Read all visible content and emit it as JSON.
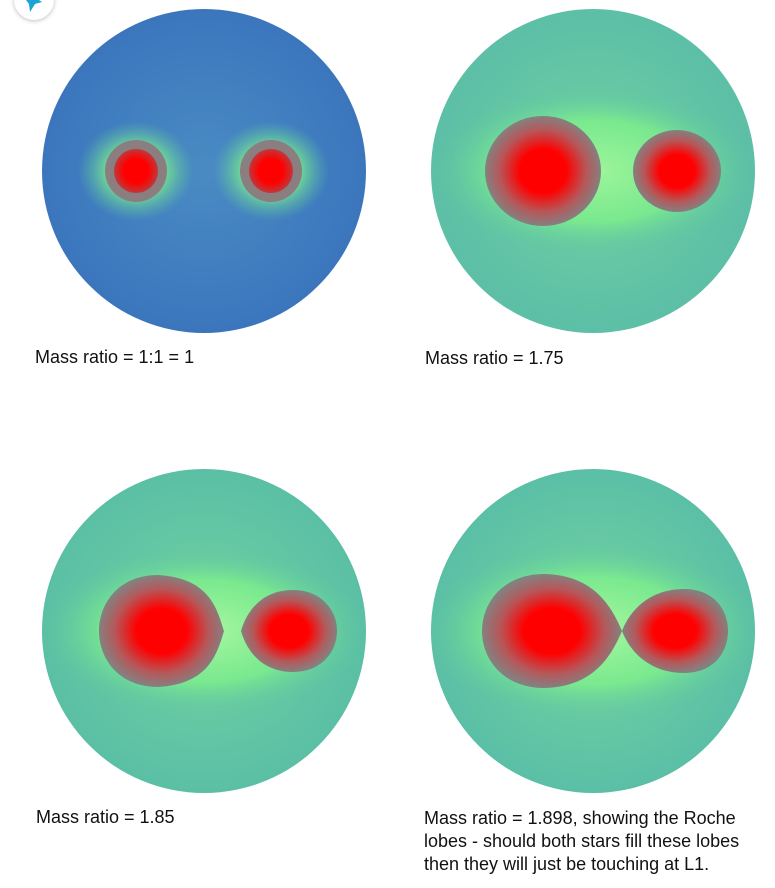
{
  "figure": {
    "panels": [
      {
        "caption": "Mass ratio = 1:1 = 1",
        "mass_ratio": 1.0
      },
      {
        "caption": "Mass ratio = 1.75",
        "mass_ratio": 1.75
      },
      {
        "caption": "Mass ratio = 1.85",
        "mass_ratio": 1.85
      },
      {
        "caption": "Mass ratio = 1.898, showing the Roche lobes - should both stars fill these lobes then they will just be touching at L1.",
        "mass_ratio": 1.898
      }
    ]
  },
  "colors": {
    "star_core": "#ff0000",
    "lobe_gray": "#858080",
    "glow_green": "#7ef08a",
    "field_teal": "#5fc6a0",
    "field_blue": "#3f7cc0"
  },
  "icons": {
    "corner_badge": "bird-logo-icon"
  }
}
